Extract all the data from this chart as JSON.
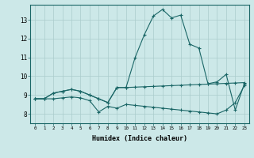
{
  "xlabel": "Humidex (Indice chaleur)",
  "background_color": "#cce8e8",
  "grid_color": "#aacccc",
  "line_color": "#1a6666",
  "xlim": [
    -0.5,
    23.5
  ],
  "ylim": [
    7.5,
    13.8
  ],
  "xticks": [
    0,
    1,
    2,
    3,
    4,
    5,
    6,
    7,
    8,
    9,
    10,
    11,
    12,
    13,
    14,
    15,
    16,
    17,
    18,
    19,
    20,
    21,
    22,
    23
  ],
  "yticks": [
    8,
    9,
    10,
    11,
    12,
    13
  ],
  "series": [
    [
      8.8,
      8.8,
      9.1,
      9.2,
      9.3,
      9.2,
      9.0,
      8.8,
      8.6,
      9.4,
      9.4,
      11.0,
      12.2,
      13.2,
      13.55,
      13.1,
      13.25,
      11.7,
      11.5,
      9.6,
      9.7,
      10.1,
      8.2,
      9.6
    ],
    [
      8.8,
      8.8,
      9.1,
      9.2,
      9.3,
      9.2,
      9.0,
      8.8,
      8.6,
      9.4,
      9.4,
      9.42,
      9.44,
      9.46,
      9.48,
      9.5,
      9.52,
      9.54,
      9.56,
      9.58,
      9.6,
      9.62,
      9.64,
      9.66
    ],
    [
      8.8,
      8.8,
      8.8,
      8.85,
      8.9,
      8.85,
      8.7,
      8.1,
      8.4,
      8.3,
      8.5,
      8.45,
      8.4,
      8.35,
      8.3,
      8.25,
      8.2,
      8.15,
      8.1,
      8.05,
      8.0,
      8.2,
      8.6,
      9.5
    ]
  ]
}
